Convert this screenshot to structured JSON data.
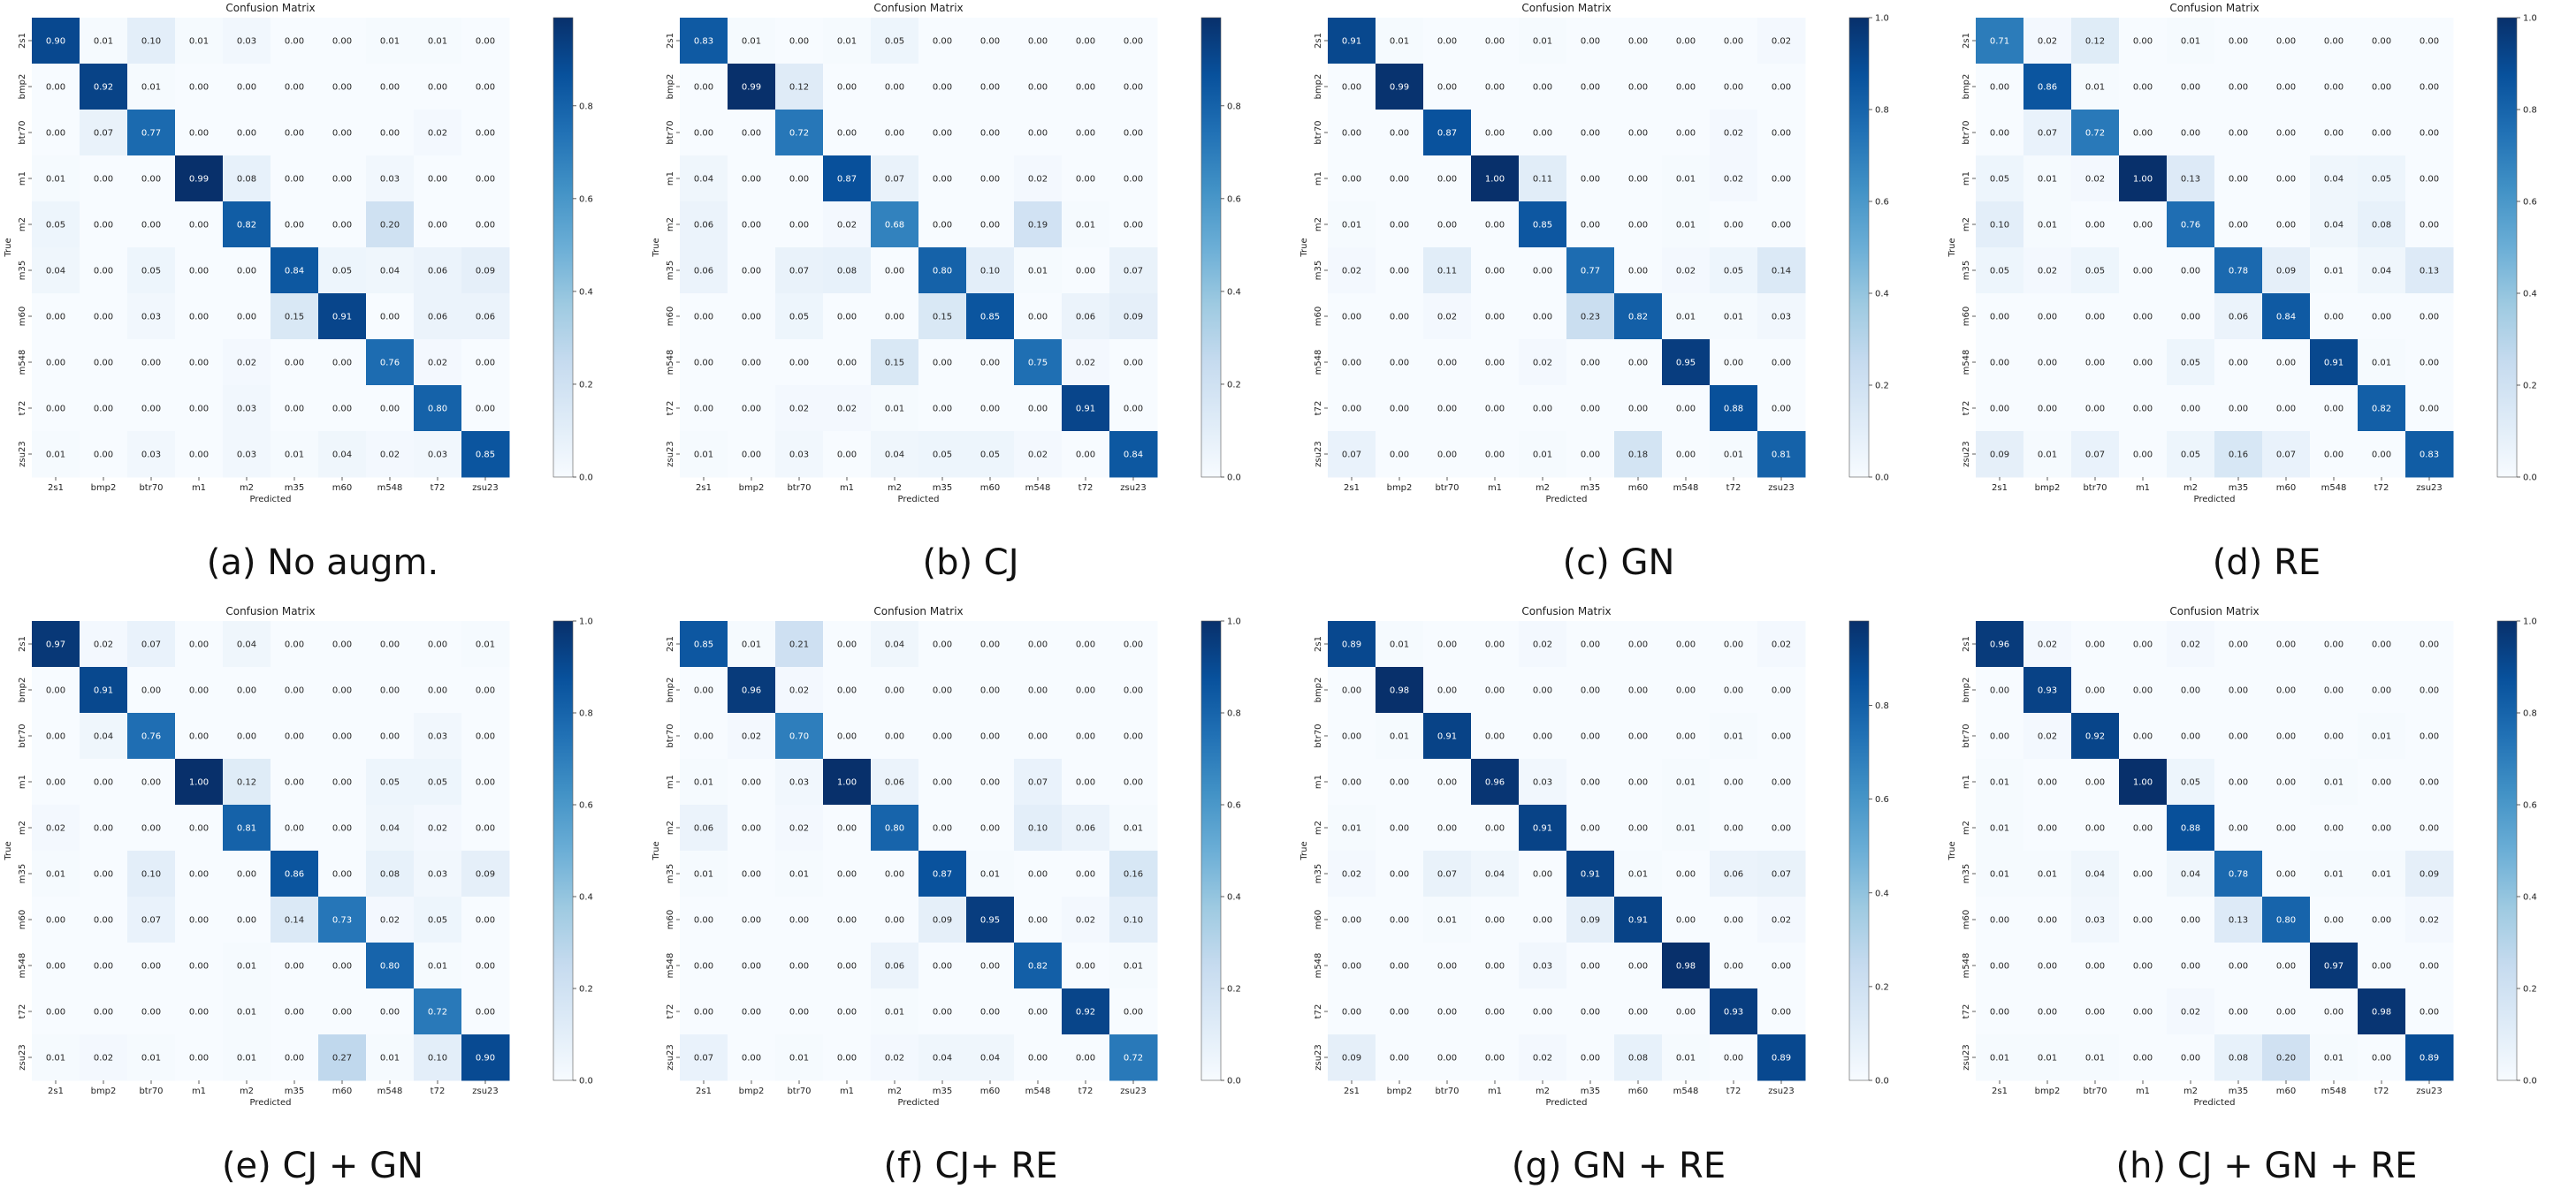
{
  "figure": {
    "classes": [
      "2s1",
      "bmp2",
      "btr70",
      "m1",
      "m2",
      "m35",
      "m60",
      "m548",
      "t72",
      "zsu23"
    ]
  },
  "chart_data": [
    {
      "type": "heatmap",
      "caption": "(a) No augm.",
      "title": "Confusion Matrix",
      "xlabel": "Predicted",
      "ylabel": "True",
      "x_ticks": [
        "2s1",
        "bmp2",
        "btr70",
        "m1",
        "m2",
        "m35",
        "m60",
        "m548",
        "t72",
        "zsu23"
      ],
      "y_ticks": [
        "2s1",
        "bmp2",
        "btr70",
        "m1",
        "m2",
        "m35",
        "m60",
        "m548",
        "t72",
        "zsu23"
      ],
      "colorbar_ticks": [
        "0.0",
        "0.2",
        "0.4",
        "0.6",
        "0.8"
      ],
      "colorbar_max": 0.99,
      "colorscale": "Blues",
      "values": [
        [
          0.9,
          0.01,
          0.1,
          0.01,
          0.03,
          0.0,
          0.0,
          0.01,
          0.01,
          0.0
        ],
        [
          0.0,
          0.92,
          0.01,
          0.0,
          0.0,
          0.0,
          0.0,
          0.0,
          0.0,
          0.0
        ],
        [
          0.0,
          0.07,
          0.77,
          0.0,
          0.0,
          0.0,
          0.0,
          0.0,
          0.02,
          0.0
        ],
        [
          0.01,
          0.0,
          0.0,
          0.99,
          0.08,
          0.0,
          0.0,
          0.03,
          0.0,
          0.0
        ],
        [
          0.05,
          0.0,
          0.0,
          0.0,
          0.82,
          0.0,
          0.0,
          0.2,
          0.0,
          0.0
        ],
        [
          0.04,
          0.0,
          0.05,
          0.0,
          0.0,
          0.84,
          0.05,
          0.04,
          0.06,
          0.09
        ],
        [
          0.0,
          0.0,
          0.03,
          0.0,
          0.0,
          0.15,
          0.91,
          0.0,
          0.06,
          0.06
        ],
        [
          0.0,
          0.0,
          0.0,
          0.0,
          0.02,
          0.0,
          0.0,
          0.76,
          0.02,
          0.0
        ],
        [
          0.0,
          0.0,
          0.0,
          0.0,
          0.03,
          0.0,
          0.0,
          0.0,
          0.8,
          0.0
        ],
        [
          0.01,
          0.0,
          0.03,
          0.0,
          0.03,
          0.01,
          0.04,
          0.02,
          0.03,
          0.85
        ]
      ]
    },
    {
      "type": "heatmap",
      "caption": "(b) CJ",
      "title": "Confusion Matrix",
      "xlabel": "Predicted",
      "ylabel": "True",
      "x_ticks": [
        "2s1",
        "bmp2",
        "btr70",
        "m1",
        "m2",
        "m35",
        "m60",
        "m548",
        "t72",
        "zsu23"
      ],
      "y_ticks": [
        "2s1",
        "bmp2",
        "btr70",
        "m1",
        "m2",
        "m35",
        "m60",
        "m548",
        "t72",
        "zsu23"
      ],
      "colorbar_ticks": [
        "0.0",
        "0.2",
        "0.4",
        "0.6",
        "0.8"
      ],
      "colorbar_max": 0.99,
      "colorscale": "Blues",
      "values": [
        [
          0.83,
          0.01,
          0.0,
          0.01,
          0.05,
          0.0,
          0.0,
          0.0,
          0.0,
          0.0
        ],
        [
          0.0,
          0.99,
          0.12,
          0.0,
          0.0,
          0.0,
          0.0,
          0.0,
          0.0,
          0.0
        ],
        [
          0.0,
          0.0,
          0.72,
          0.0,
          0.0,
          0.0,
          0.0,
          0.0,
          0.0,
          0.0
        ],
        [
          0.04,
          0.0,
          0.0,
          0.87,
          0.07,
          0.0,
          0.0,
          0.02,
          0.0,
          0.0
        ],
        [
          0.06,
          0.0,
          0.0,
          0.02,
          0.68,
          0.0,
          0.0,
          0.19,
          0.01,
          0.0
        ],
        [
          0.06,
          0.0,
          0.07,
          0.08,
          0.0,
          0.8,
          0.1,
          0.01,
          0.0,
          0.07
        ],
        [
          0.0,
          0.0,
          0.05,
          0.0,
          0.0,
          0.15,
          0.85,
          0.0,
          0.06,
          0.09
        ],
        [
          0.0,
          0.0,
          0.0,
          0.0,
          0.15,
          0.0,
          0.0,
          0.75,
          0.02,
          0.0
        ],
        [
          0.0,
          0.0,
          0.02,
          0.02,
          0.01,
          0.0,
          0.0,
          0.0,
          0.91,
          0.0
        ],
        [
          0.01,
          0.0,
          0.03,
          0.0,
          0.04,
          0.05,
          0.05,
          0.02,
          0.0,
          0.84
        ]
      ]
    },
    {
      "type": "heatmap",
      "caption": "(c) GN",
      "title": "Confusion Matrix",
      "xlabel": "Predicted",
      "ylabel": "True",
      "x_ticks": [
        "2s1",
        "bmp2",
        "btr70",
        "m1",
        "m2",
        "m35",
        "m60",
        "m548",
        "t72",
        "zsu23"
      ],
      "y_ticks": [
        "2s1",
        "bmp2",
        "btr70",
        "m1",
        "m2",
        "m35",
        "m60",
        "m548",
        "t72",
        "zsu23"
      ],
      "colorbar_ticks": [
        "0.0",
        "0.2",
        "0.4",
        "0.6",
        "0.8",
        "1.0"
      ],
      "colorbar_max": 1.0,
      "colorscale": "Blues",
      "values": [
        [
          0.91,
          0.01,
          0.0,
          0.0,
          0.01,
          0.0,
          0.0,
          0.0,
          0.0,
          0.02
        ],
        [
          0.0,
          0.99,
          0.0,
          0.0,
          0.0,
          0.0,
          0.0,
          0.0,
          0.0,
          0.0
        ],
        [
          0.0,
          0.0,
          0.87,
          0.0,
          0.0,
          0.0,
          0.0,
          0.0,
          0.02,
          0.0
        ],
        [
          0.0,
          0.0,
          0.0,
          1.0,
          0.11,
          0.0,
          0.0,
          0.01,
          0.02,
          0.0
        ],
        [
          0.01,
          0.0,
          0.0,
          0.0,
          0.85,
          0.0,
          0.0,
          0.01,
          0.0,
          0.0
        ],
        [
          0.02,
          0.0,
          0.11,
          0.0,
          0.0,
          0.77,
          0.0,
          0.02,
          0.05,
          0.14
        ],
        [
          0.0,
          0.0,
          0.02,
          0.0,
          0.0,
          0.23,
          0.82,
          0.01,
          0.01,
          0.03
        ],
        [
          0.0,
          0.0,
          0.0,
          0.0,
          0.02,
          0.0,
          0.0,
          0.95,
          0.0,
          0.0
        ],
        [
          0.0,
          0.0,
          0.0,
          0.0,
          0.0,
          0.0,
          0.0,
          0.0,
          0.88,
          0.0
        ],
        [
          0.07,
          0.0,
          0.0,
          0.0,
          0.01,
          0.0,
          0.18,
          0.0,
          0.01,
          0.81
        ]
      ]
    },
    {
      "type": "heatmap",
      "caption": "(d) RE",
      "title": "Confusion Matrix",
      "xlabel": "Predicted",
      "ylabel": "True",
      "x_ticks": [
        "2s1",
        "bmp2",
        "btr70",
        "m1",
        "m2",
        "m35",
        "m60",
        "m548",
        "t72",
        "zsu23"
      ],
      "y_ticks": [
        "2s1",
        "bmp2",
        "btr70",
        "m1",
        "m2",
        "m35",
        "m60",
        "m548",
        "t72",
        "zsu23"
      ],
      "colorbar_ticks": [
        "0.0",
        "0.2",
        "0.4",
        "0.6",
        "0.8",
        "1.0"
      ],
      "colorbar_max": 1.0,
      "colorscale": "Blues",
      "values": [
        [
          0.71,
          0.02,
          0.12,
          0.0,
          0.01,
          0.0,
          0.0,
          0.0,
          0.0,
          0.0
        ],
        [
          0.0,
          0.86,
          0.01,
          0.0,
          0.0,
          0.0,
          0.0,
          0.0,
          0.0,
          0.0
        ],
        [
          0.0,
          0.07,
          0.72,
          0.0,
          0.0,
          0.0,
          0.0,
          0.0,
          0.0,
          0.0
        ],
        [
          0.05,
          0.01,
          0.02,
          1.0,
          0.13,
          0.0,
          0.0,
          0.04,
          0.05,
          0.0
        ],
        [
          0.1,
          0.01,
          0.0,
          0.0,
          0.76,
          0.0,
          0.0,
          0.04,
          0.08,
          0.0
        ],
        [
          0.05,
          0.02,
          0.05,
          0.0,
          0.0,
          0.78,
          0.09,
          0.01,
          0.04,
          0.13
        ],
        [
          0.0,
          0.0,
          0.0,
          0.0,
          0.0,
          0.06,
          0.84,
          0.0,
          0.0,
          0.0
        ],
        [
          0.0,
          0.0,
          0.0,
          0.0,
          0.05,
          0.0,
          0.0,
          0.91,
          0.01,
          0.0
        ],
        [
          0.0,
          0.0,
          0.0,
          0.0,
          0.0,
          0.0,
          0.0,
          0.0,
          0.82,
          0.0
        ],
        [
          0.09,
          0.01,
          0.07,
          0.0,
          0.05,
          0.16,
          0.07,
          0.0,
          0.0,
          0.83
        ]
      ]
    },
    {
      "type": "heatmap",
      "caption": "(e) CJ + GN",
      "title": "Confusion Matrix",
      "xlabel": "Predicted",
      "ylabel": "True",
      "x_ticks": [
        "2s1",
        "bmp2",
        "btr70",
        "m1",
        "m2",
        "m35",
        "m60",
        "m548",
        "t72",
        "zsu23"
      ],
      "y_ticks": [
        "2s1",
        "bmp2",
        "btr70",
        "m1",
        "m2",
        "m35",
        "m60",
        "m548",
        "t72",
        "zsu23"
      ],
      "colorbar_ticks": [
        "0.0",
        "0.2",
        "0.4",
        "0.6",
        "0.8",
        "1.0"
      ],
      "colorbar_max": 1.0,
      "colorscale": "Blues",
      "values": [
        [
          0.97,
          0.02,
          0.07,
          0.0,
          0.04,
          0.0,
          0.0,
          0.0,
          0.0,
          0.01
        ],
        [
          0.0,
          0.91,
          0.0,
          0.0,
          0.0,
          0.0,
          0.0,
          0.0,
          0.0,
          0.0
        ],
        [
          0.0,
          0.04,
          0.76,
          0.0,
          0.0,
          0.0,
          0.0,
          0.0,
          0.03,
          0.0
        ],
        [
          0.0,
          0.0,
          0.0,
          1.0,
          0.12,
          0.0,
          0.0,
          0.05,
          0.05,
          0.0
        ],
        [
          0.02,
          0.0,
          0.0,
          0.0,
          0.81,
          0.0,
          0.0,
          0.04,
          0.02,
          0.0
        ],
        [
          0.01,
          0.0,
          0.1,
          0.0,
          0.0,
          0.86,
          0.0,
          0.08,
          0.03,
          0.09
        ],
        [
          0.0,
          0.0,
          0.07,
          0.0,
          0.0,
          0.14,
          0.73,
          0.02,
          0.05,
          0.0
        ],
        [
          0.0,
          0.0,
          0.0,
          0.0,
          0.01,
          0.0,
          0.0,
          0.8,
          0.01,
          0.0
        ],
        [
          0.0,
          0.0,
          0.0,
          0.0,
          0.01,
          0.0,
          0.0,
          0.0,
          0.72,
          0.0
        ],
        [
          0.01,
          0.02,
          0.01,
          0.0,
          0.01,
          0.0,
          0.27,
          0.01,
          0.1,
          0.9
        ]
      ]
    },
    {
      "type": "heatmap",
      "caption": "(f) CJ+ RE",
      "title": "Confusion Matrix",
      "xlabel": "Predicted",
      "ylabel": "True",
      "x_ticks": [
        "2s1",
        "bmp2",
        "btr70",
        "m1",
        "m2",
        "m35",
        "m60",
        "m548",
        "t72",
        "zsu23"
      ],
      "y_ticks": [
        "2s1",
        "bmp2",
        "btr70",
        "m1",
        "m2",
        "m35",
        "m60",
        "m548",
        "t72",
        "zsu23"
      ],
      "colorbar_ticks": [
        "0.0",
        "0.2",
        "0.4",
        "0.6",
        "0.8",
        "1.0"
      ],
      "colorbar_max": 1.0,
      "colorscale": "Blues",
      "values": [
        [
          0.85,
          0.01,
          0.21,
          0.0,
          0.04,
          0.0,
          0.0,
          0.0,
          0.0,
          0.0
        ],
        [
          0.0,
          0.96,
          0.02,
          0.0,
          0.0,
          0.0,
          0.0,
          0.0,
          0.0,
          0.0
        ],
        [
          0.0,
          0.02,
          0.7,
          0.0,
          0.0,
          0.0,
          0.0,
          0.0,
          0.0,
          0.0
        ],
        [
          0.01,
          0.0,
          0.03,
          1.0,
          0.06,
          0.0,
          0.0,
          0.07,
          0.0,
          0.0
        ],
        [
          0.06,
          0.0,
          0.02,
          0.0,
          0.8,
          0.0,
          0.0,
          0.1,
          0.06,
          0.01
        ],
        [
          0.01,
          0.0,
          0.01,
          0.0,
          0.0,
          0.87,
          0.01,
          0.0,
          0.0,
          0.16
        ],
        [
          0.0,
          0.0,
          0.0,
          0.0,
          0.0,
          0.09,
          0.95,
          0.0,
          0.02,
          0.1
        ],
        [
          0.0,
          0.0,
          0.0,
          0.0,
          0.06,
          0.0,
          0.0,
          0.82,
          0.0,
          0.01
        ],
        [
          0.0,
          0.0,
          0.0,
          0.0,
          0.01,
          0.0,
          0.0,
          0.0,
          0.92,
          0.0
        ],
        [
          0.07,
          0.0,
          0.01,
          0.0,
          0.02,
          0.04,
          0.04,
          0.0,
          0.0,
          0.72
        ]
      ]
    },
    {
      "type": "heatmap",
      "caption": "(g) GN + RE",
      "title": "Confusion Matrix",
      "xlabel": "Predicted",
      "ylabel": "True",
      "x_ticks": [
        "2s1",
        "bmp2",
        "btr70",
        "m1",
        "m2",
        "m35",
        "m60",
        "m548",
        "t72",
        "zsu23"
      ],
      "y_ticks": [
        "2s1",
        "bmp2",
        "btr70",
        "m1",
        "m2",
        "m35",
        "m60",
        "m548",
        "t72",
        "zsu23"
      ],
      "colorbar_ticks": [
        "0.0",
        "0.2",
        "0.4",
        "0.6",
        "0.8"
      ],
      "colorbar_max": 0.98,
      "colorscale": "Blues",
      "values": [
        [
          0.89,
          0.01,
          0.0,
          0.0,
          0.02,
          0.0,
          0.0,
          0.0,
          0.0,
          0.02
        ],
        [
          0.0,
          0.98,
          0.0,
          0.0,
          0.0,
          0.0,
          0.0,
          0.0,
          0.0,
          0.0
        ],
        [
          0.0,
          0.01,
          0.91,
          0.0,
          0.0,
          0.0,
          0.0,
          0.0,
          0.01,
          0.0
        ],
        [
          0.0,
          0.0,
          0.0,
          0.96,
          0.03,
          0.0,
          0.0,
          0.01,
          0.0,
          0.0
        ],
        [
          0.01,
          0.0,
          0.0,
          0.0,
          0.91,
          0.0,
          0.0,
          0.01,
          0.0,
          0.0
        ],
        [
          0.02,
          0.0,
          0.07,
          0.04,
          0.0,
          0.91,
          0.01,
          0.0,
          0.06,
          0.07
        ],
        [
          0.0,
          0.0,
          0.01,
          0.0,
          0.0,
          0.09,
          0.91,
          0.0,
          0.0,
          0.02
        ],
        [
          0.0,
          0.0,
          0.0,
          0.0,
          0.03,
          0.0,
          0.0,
          0.98,
          0.0,
          0.0
        ],
        [
          0.0,
          0.0,
          0.0,
          0.0,
          0.0,
          0.0,
          0.0,
          0.0,
          0.93,
          0.0
        ],
        [
          0.09,
          0.0,
          0.0,
          0.0,
          0.02,
          0.0,
          0.08,
          0.01,
          0.0,
          0.89
        ]
      ]
    },
    {
      "type": "heatmap",
      "caption": "(h) CJ + GN + RE",
      "title": "Confusion Matrix",
      "xlabel": "Predicted",
      "ylabel": "True",
      "x_ticks": [
        "2s1",
        "bmp2",
        "btr70",
        "m1",
        "m2",
        "m35",
        "m60",
        "m548",
        "t72",
        "zsu23"
      ],
      "y_ticks": [
        "2s1",
        "bmp2",
        "btr70",
        "m1",
        "m2",
        "m35",
        "m60",
        "m548",
        "t72",
        "zsu23"
      ],
      "colorbar_ticks": [
        "0.0",
        "0.2",
        "0.4",
        "0.6",
        "0.8",
        "1.0"
      ],
      "colorbar_max": 1.0,
      "colorscale": "Blues",
      "values": [
        [
          0.96,
          0.02,
          0.0,
          0.0,
          0.02,
          0.0,
          0.0,
          0.0,
          0.0,
          0.0
        ],
        [
          0.0,
          0.93,
          0.0,
          0.0,
          0.0,
          0.0,
          0.0,
          0.0,
          0.0,
          0.0
        ],
        [
          0.0,
          0.02,
          0.92,
          0.0,
          0.0,
          0.0,
          0.0,
          0.0,
          0.01,
          0.0
        ],
        [
          0.01,
          0.0,
          0.0,
          1.0,
          0.05,
          0.0,
          0.0,
          0.01,
          0.0,
          0.0
        ],
        [
          0.01,
          0.0,
          0.0,
          0.0,
          0.88,
          0.0,
          0.0,
          0.0,
          0.0,
          0.0
        ],
        [
          0.01,
          0.01,
          0.04,
          0.0,
          0.04,
          0.78,
          0.0,
          0.01,
          0.01,
          0.09
        ],
        [
          0.0,
          0.0,
          0.03,
          0.0,
          0.0,
          0.13,
          0.8,
          0.0,
          0.0,
          0.02
        ],
        [
          0.0,
          0.0,
          0.0,
          0.0,
          0.0,
          0.0,
          0.0,
          0.97,
          0.0,
          0.0
        ],
        [
          0.0,
          0.0,
          0.0,
          0.0,
          0.02,
          0.0,
          0.0,
          0.0,
          0.98,
          0.0
        ],
        [
          0.01,
          0.01,
          0.01,
          0.0,
          0.0,
          0.08,
          0.2,
          0.01,
          0.0,
          0.89
        ]
      ]
    }
  ]
}
